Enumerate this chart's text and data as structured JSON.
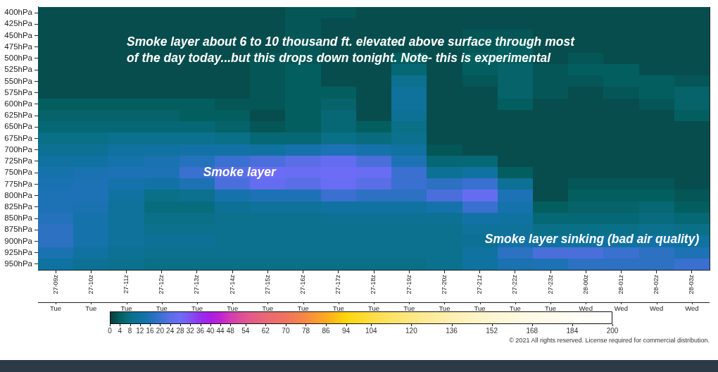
{
  "chart_data": {
    "type": "heatmap",
    "categories": [
      "27-09z",
      "27-10z",
      "27-11z",
      "27-12z",
      "27-13z",
      "27-14z",
      "27-15z",
      "27-16z",
      "27-17z",
      "27-18z",
      "27-19z",
      "27-20z",
      "27-21z",
      "27-22z",
      "27-23z",
      "28-00z",
      "28-01z",
      "28-02z",
      "28-03z"
    ],
    "y_categories": [
      "400hPa",
      "425hPa",
      "450hPa",
      "475hPa",
      "500hPa",
      "525hPa",
      "550hPa",
      "575hPa",
      "600hPa",
      "625hPa",
      "650hPa",
      "675hPa",
      "700hPa",
      "725hPa",
      "750hPa",
      "775hPa",
      "800hPa",
      "825hPa",
      "850hPa",
      "875hPa",
      "900hPa",
      "925hPa",
      "950hPa"
    ],
    "cells": [
      [
        2,
        2,
        2,
        2,
        2,
        2,
        2,
        3,
        3,
        2,
        2,
        2,
        2,
        2,
        2,
        2,
        2,
        2,
        2
      ],
      [
        2,
        2,
        2,
        2,
        2,
        2,
        2,
        3,
        2,
        2,
        2,
        2,
        2,
        2,
        2,
        2,
        2,
        2,
        2
      ],
      [
        2,
        2,
        2,
        2,
        2,
        2,
        2,
        3,
        2,
        2,
        2,
        2,
        3,
        3,
        2,
        2,
        2,
        2,
        2
      ],
      [
        2,
        2,
        2,
        2,
        2,
        2,
        2,
        3,
        2,
        2,
        2,
        2,
        3,
        4,
        2,
        2,
        2,
        2,
        2
      ],
      [
        2,
        2,
        2,
        2,
        2,
        2,
        3,
        3,
        2,
        2,
        4,
        2,
        4,
        4,
        2,
        3,
        2,
        2,
        2
      ],
      [
        2,
        2,
        2,
        2,
        2,
        2,
        3,
        4,
        2,
        2,
        6,
        2,
        4,
        5,
        3,
        4,
        4,
        2,
        2
      ],
      [
        2,
        2,
        2,
        2,
        2,
        2,
        3,
        4,
        2,
        2,
        9,
        2,
        3,
        5,
        3,
        3,
        4,
        4,
        3
      ],
      [
        2,
        2,
        2,
        2,
        2,
        2,
        3,
        4,
        4,
        2,
        11,
        2,
        2,
        5,
        3,
        2,
        3,
        4,
        5
      ],
      [
        4,
        4,
        4,
        4,
        4,
        3,
        3,
        4,
        5,
        2,
        11,
        2,
        2,
        4,
        2,
        2,
        2,
        3,
        5
      ],
      [
        5,
        5,
        5,
        5,
        4,
        4,
        2,
        4,
        6,
        2,
        10,
        2,
        2,
        2,
        2,
        2,
        2,
        2,
        4
      ],
      [
        6,
        6,
        6,
        6,
        6,
        5,
        3,
        4,
        6,
        4,
        8,
        2,
        2,
        2,
        2,
        2,
        2,
        2,
        2
      ],
      [
        8,
        8,
        9,
        9,
        9,
        8,
        6,
        6,
        8,
        7,
        9,
        2,
        2,
        2,
        2,
        2,
        2,
        2,
        2
      ],
      [
        10,
        10,
        12,
        12,
        13,
        13,
        12,
        14,
        16,
        14,
        12,
        3,
        2,
        2,
        2,
        2,
        2,
        2,
        2
      ],
      [
        12,
        12,
        14,
        15,
        17,
        20,
        22,
        24,
        26,
        22,
        16,
        6,
        6,
        2,
        2,
        2,
        2,
        2,
        2
      ],
      [
        14,
        15,
        16,
        16,
        20,
        24,
        28,
        27,
        28,
        27,
        20,
        10,
        12,
        4,
        2,
        2,
        2,
        2,
        2
      ],
      [
        15,
        16,
        14,
        13,
        16,
        22,
        26,
        24,
        27,
        24,
        20,
        18,
        20,
        10,
        2,
        3,
        3,
        3,
        2
      ],
      [
        16,
        16,
        12,
        8,
        9,
        14,
        16,
        16,
        20,
        18,
        18,
        22,
        26,
        16,
        2,
        4,
        4,
        4,
        3
      ],
      [
        16,
        15,
        11,
        7,
        7,
        10,
        11,
        11,
        12,
        12,
        12,
        14,
        20,
        14,
        4,
        5,
        5,
        6,
        4
      ],
      [
        17,
        14,
        11,
        8,
        8,
        9,
        9,
        9,
        10,
        10,
        10,
        10,
        13,
        12,
        6,
        6,
        6,
        7,
        6
      ],
      [
        18,
        14,
        11,
        9,
        9,
        9,
        9,
        9,
        9,
        9,
        9,
        9,
        11,
        11,
        8,
        8,
        8,
        9,
        8
      ],
      [
        18,
        14,
        11,
        10,
        10,
        9,
        9,
        9,
        9,
        9,
        9,
        9,
        10,
        13,
        12,
        12,
        12,
        13,
        12
      ],
      [
        15,
        12,
        10,
        9,
        9,
        9,
        9,
        9,
        9,
        9,
        9,
        9,
        12,
        18,
        22,
        22,
        20,
        18,
        16
      ],
      [
        12,
        10,
        9,
        8,
        8,
        8,
        8,
        8,
        8,
        8,
        8,
        9,
        12,
        15,
        16,
        18,
        18,
        18,
        20
      ]
    ],
    "clim": [
      0,
      200
    ],
    "cticks": [
      0,
      4,
      8,
      12,
      16,
      20,
      24,
      28,
      32,
      36,
      40,
      44,
      48,
      54,
      62,
      70,
      78,
      86,
      94,
      104,
      120,
      136,
      152,
      168,
      184,
      200
    ],
    "annotations": [
      "Smoke layer about 6 to 10 thousand ft. elevated above surface through most of the day today...but this drops down tonight. Note- this is experimental",
      "Smoke layer",
      "Smoke layer sinking (bad air quality)",
      "Tue",
      "Tue",
      "Tue",
      "Tue",
      "Tue",
      "Tue",
      "Tue",
      "Tue",
      "Tue",
      "Tue",
      "Tue",
      "Tue",
      "Tue",
      "Tue",
      "Tue",
      "Wed",
      "Wed",
      "Wed",
      "Wed",
      "© 2021 All rights reserved. License required for commercial distribution."
    ]
  }
}
